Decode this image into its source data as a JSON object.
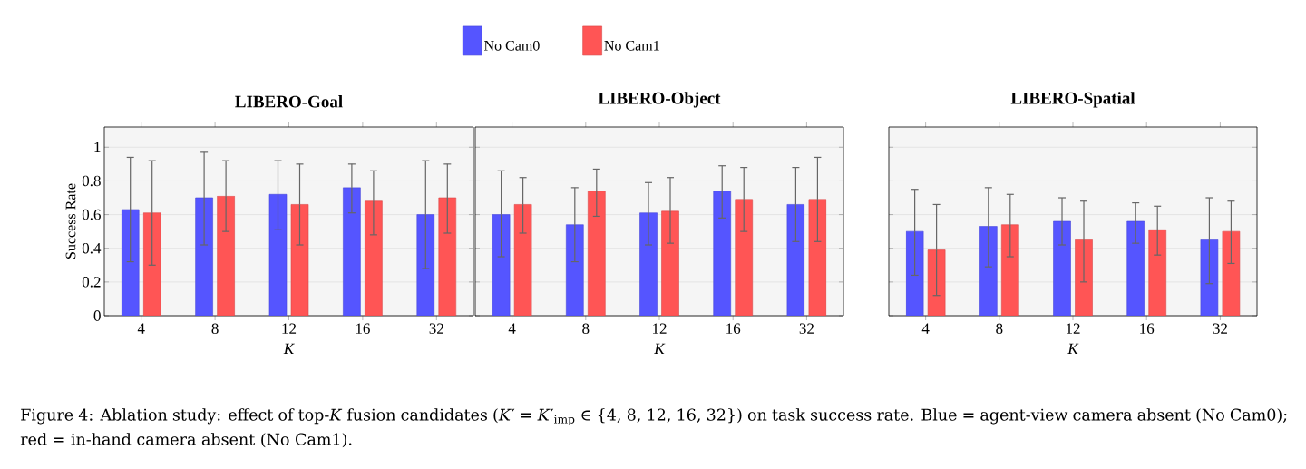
{
  "chart_data": [
    {
      "type": "bar",
      "title": "LIBERO-Goal",
      "categories": [
        "4",
        "8",
        "12",
        "16",
        "32"
      ],
      "xlabel": "K",
      "ylabel": "Success Rate",
      "ylim": [
        0,
        1.12
      ],
      "yticks": [
        0,
        0.2,
        0.4,
        0.6,
        0.8,
        1
      ],
      "grid": "y",
      "series": [
        {
          "color": "#5555ff",
          "values": [
            0.63,
            0.7,
            0.72,
            0.76,
            0.6
          ],
          "errors": [
            [
              0.32,
              0.94
            ],
            [
              0.42,
              0.97
            ],
            [
              0.51,
              0.92
            ],
            [
              0.61,
              0.9
            ],
            [
              0.28,
              0.92
            ]
          ]
        },
        {
          "color": "#ff5555",
          "values": [
            0.61,
            0.71,
            0.66,
            0.68,
            0.7
          ],
          "errors": [
            [
              0.3,
              0.92
            ],
            [
              0.5,
              0.92
            ],
            [
              0.42,
              0.9
            ],
            [
              0.48,
              0.86
            ],
            [
              0.49,
              0.9
            ]
          ]
        }
      ],
      "annotations": [
        "Figure 4: Ablation study: effect of top-*K* fusion candidates (*K*′ = *K*′$_{imp}$ ∈ {4, 8, 12, 16, 32}) on task success rate. Blue = agent-view camera absent (No Cam0); red = in-hand camera absent (No Cam1)."
      ]
    },
    {
      "type": "bar",
      "title": "LIBERO-Object",
      "categories": [
        "4",
        "8",
        "12",
        "16",
        "32"
      ],
      "xlabel": "K",
      "ylim": [
        0,
        1.12
      ],
      "yticks": [
        0,
        0.2,
        0.4,
        0.6,
        0.8,
        1
      ],
      "grid": "y",
      "tick_labels": "x",
      "legend": "top",
      "series": [
        {
          "name": "No Cam0",
          "color": "#5555ff",
          "values": [
            0.6,
            0.54,
            0.61,
            0.74,
            0.66
          ],
          "errors": [
            [
              0.35,
              0.86
            ],
            [
              0.32,
              0.76
            ],
            [
              0.42,
              0.79
            ],
            [
              0.58,
              0.89
            ],
            [
              0.44,
              0.88
            ]
          ]
        },
        {
          "name": "No Cam1",
          "color": "#ff5555",
          "values": [
            0.66,
            0.74,
            0.62,
            0.69,
            0.69
          ],
          "errors": [
            [
              0.49,
              0.82
            ],
            [
              0.59,
              0.87
            ],
            [
              0.43,
              0.82
            ],
            [
              0.5,
              0.88
            ],
            [
              0.44,
              0.94
            ]
          ]
        }
      ]
    },
    {
      "type": "bar",
      "title": "LIBERO-Spatial",
      "categories": [
        "4",
        "8",
        "12",
        "16",
        "32"
      ],
      "xlabel": "K",
      "ylim": [
        0,
        1.12
      ],
      "yticks": [
        0,
        0.2,
        0.4,
        0.6,
        0.8,
        1
      ],
      "grid": "y",
      "tick_labels": "x",
      "series": [
        {
          "color": "#5555ff",
          "values": [
            0.5,
            0.53,
            0.56,
            0.56,
            0.45
          ],
          "errors": [
            [
              0.24,
              0.75
            ],
            [
              0.29,
              0.76
            ],
            [
              0.42,
              0.7
            ],
            [
              0.43,
              0.67
            ],
            [
              0.19,
              0.7
            ]
          ]
        },
        {
          "color": "#ff5555",
          "values": [
            0.39,
            0.54,
            0.45,
            0.51,
            0.5
          ],
          "errors": [
            [
              0.12,
              0.66
            ],
            [
              0.35,
              0.72
            ],
            [
              0.2,
              0.68
            ],
            [
              0.36,
              0.65
            ],
            [
              0.31,
              0.68
            ]
          ]
        }
      ]
    }
  ]
}
